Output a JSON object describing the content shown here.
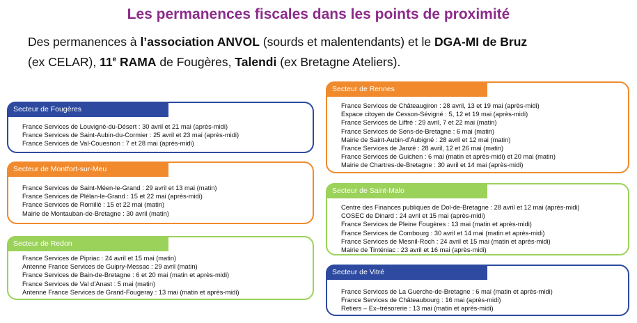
{
  "title": "Les permanences fiscales dans les points de proximité",
  "intro": {
    "p1": "Des permanences à ",
    "b1": "l’association ANVOL",
    "p2": " (sourds et malentendants) et le ",
    "b2": "DGA-MI de Bruz",
    "p3": "(ex CELAR),  ",
    "b3a": "11",
    "sup": "e",
    "b3b": " RAMA",
    "p4": " de Fougères, ",
    "b4": "Talendi",
    "p5": " (ex Bretagne Ateliers)."
  },
  "colors": {
    "title": "#8b2b8a",
    "blue": "#2d4aa0",
    "orange": "#f08a2c",
    "green": "#9bd25a"
  },
  "sectors": {
    "fougeres": {
      "name": "Secteur de Fougères",
      "lines": [
        "France Services de Louvigné-du-Désert : 30 avril et 21 mai (après-midi)",
        "France Services de Saint-Aubin-du-Cormier : 25 avril et 23 mai (après-midi)",
        "France Services de Val-Couesnon : 7 et 28 mai (après-midi)"
      ]
    },
    "montfort": {
      "name": "Secteur de Montfort-sur-Meu",
      "lines": [
        "France Services de Saint-Méen-le-Grand : 29 avril et 13 mai (matin)",
        "France Services de Plélan-le-Grand : 15 et 22 mai (après-midi)",
        "France Services de Romillé : 15 et 22 mai (matin)",
        "Mairie de Montauban-de-Bretagne : 30 avril (matin)"
      ]
    },
    "redon": {
      "name": "Secteur de Redon",
      "lines": [
        "France Services de Pipriac : 24 avril et 15 mai (matin)",
        "Antenne France Services de Guipry-Messac : 29 avril (matin)",
        "France Services de Bain-de-Bretagne : 6 et 20 mai (matin et après-midi)",
        "France Services de Val d’Anast : 5 mai (matin)",
        "Antenne France Services de Grand-Fougeray :  13 mai (matin et après-midi)"
      ]
    },
    "rennes": {
      "name": "Secteur de Rennes",
      "lines": [
        "France Services de Châteaugiron : 28 avril, 13 et 19 mai (après-midi)",
        "Espace citoyen de Cesson-Sévigné : 5, 12 et 19 mai (après-midi)",
        "France Services de Liffré : 29 avril, 7 et 22 mai (matin)",
        "France Services de Sens-de-Bretagne : 6 mai (matin)",
        "Mairie de Saint-Aubin-d’Aubigné : 28 avril et 12 mai (matin)",
        "France Services de Janzé : 28 avril, 12 et 26 mai (matin)",
        "France Services de Guichen : 6 mai (matin et après-midi) et 20 mai (matin)",
        "Mairie de Chartres-de-Bretagne : 30 avril et 14 mai (après-midi)"
      ]
    },
    "saintmalo": {
      "name": "Secteur de Saint-Malo",
      "lines": [
        "Centre des Finances publiques de Dol-de-Bretagne : 28 avril et 12 mai (après-midi)",
        "COSEC de Dinard : 24 avril et 15 mai (après-midi)",
        "France Services de Pleine Fougères : 13 mai (matin et après-midi)",
        "France Services de Combourg : 30 avril et 14 mai (matin et après-midi)",
        "France Services de Mesnil-Roch : 24 avril et 15 mai (matin et après-midi)",
        "Mairie de Tinténiac : 23 avril et 16 mai (après-midi)"
      ]
    },
    "vitre": {
      "name": "Secteur de Vitré",
      "lines": [
        "France Services de La Guerche-de-Bretagne : 6 mai (matin et après-midi)",
        "France Services de Châteaubourg : 16 mai (après-midi)",
        "Retiers – Ex–trésorerie : 13 mai (matin et après-midi)"
      ]
    }
  }
}
